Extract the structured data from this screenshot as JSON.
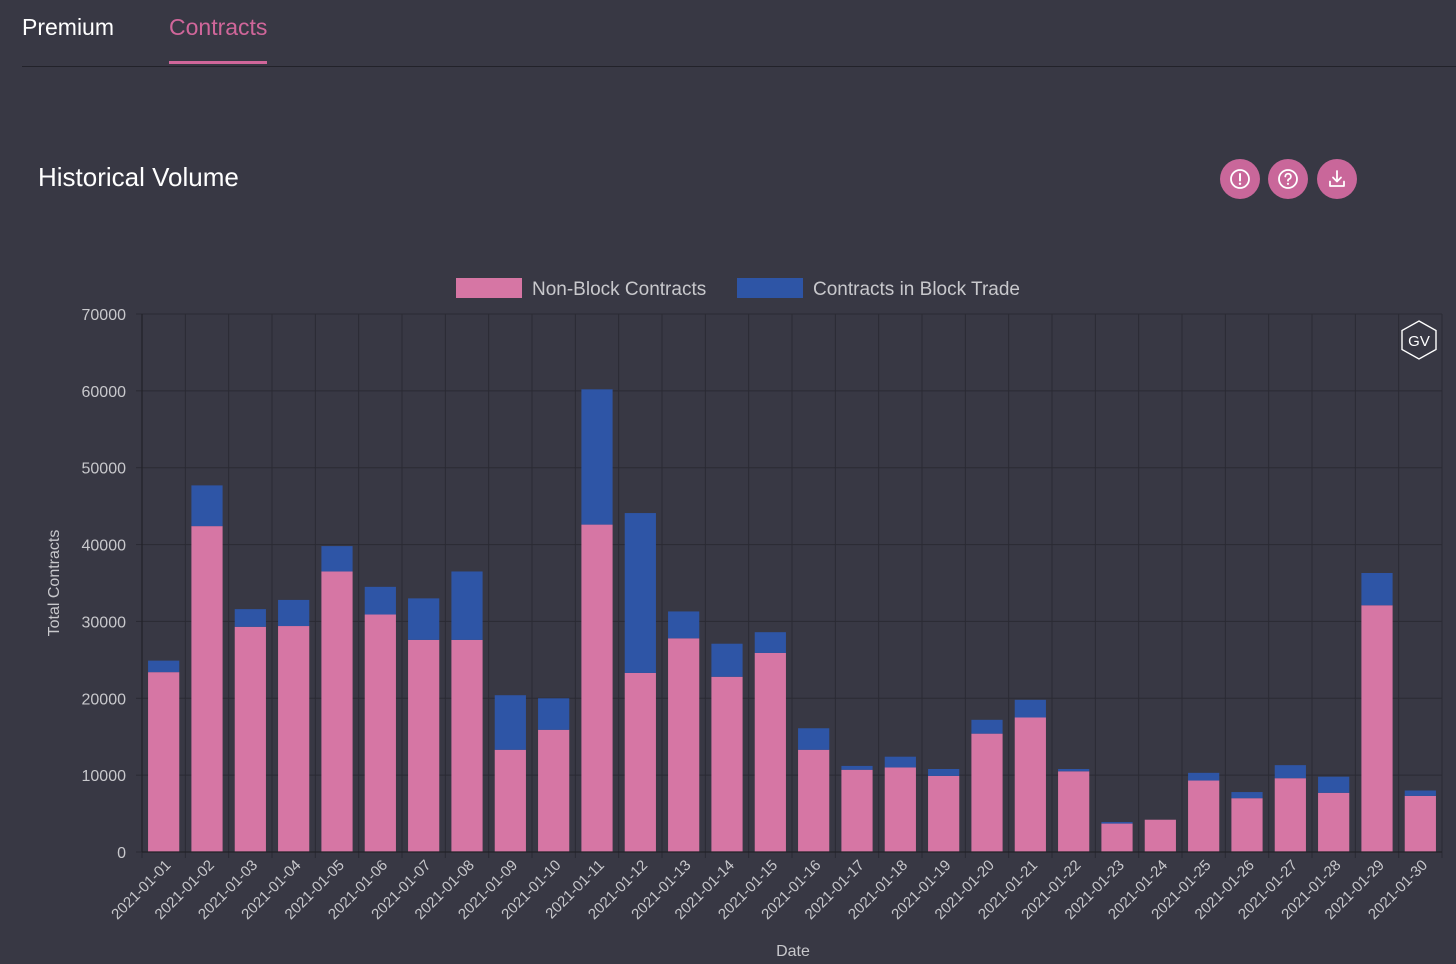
{
  "tabs": [
    {
      "label": "Premium",
      "active": false
    },
    {
      "label": "Contracts",
      "active": true
    }
  ],
  "section": {
    "title": "Historical Volume",
    "actions": [
      {
        "icon": "alert-icon"
      },
      {
        "icon": "help-icon"
      },
      {
        "icon": "download-icon"
      }
    ]
  },
  "watermark": "GV",
  "colors": {
    "background": "#383844",
    "accent": "#d0669a",
    "non_block": "#d676a4",
    "block": "#2e55a6",
    "grid": "#2a2a33",
    "axis_text": "#c8c8cc"
  },
  "chart_data": {
    "type": "bar",
    "stacked": true,
    "xlabel": "Date",
    "ylabel": "Total Contracts",
    "ylim": [
      0,
      70000
    ],
    "yticks": [
      0,
      10000,
      20000,
      30000,
      40000,
      50000,
      60000,
      70000
    ],
    "grid": true,
    "legend_position": "top-center",
    "categories": [
      "2021-01-01",
      "2021-01-02",
      "2021-01-03",
      "2021-01-04",
      "2021-01-05",
      "2021-01-06",
      "2021-01-07",
      "2021-01-08",
      "2021-01-09",
      "2021-01-10",
      "2021-01-11",
      "2021-01-12",
      "2021-01-13",
      "2021-01-14",
      "2021-01-15",
      "2021-01-16",
      "2021-01-17",
      "2021-01-18",
      "2021-01-19",
      "2021-01-20",
      "2021-01-21",
      "2021-01-22",
      "2021-01-23",
      "2021-01-24",
      "2021-01-25",
      "2021-01-26",
      "2021-01-27",
      "2021-01-28",
      "2021-01-29",
      "2021-01-30"
    ],
    "series": [
      {
        "name": "Non-Block Contracts",
        "values": [
          23400,
          42400,
          29300,
          29400,
          36500,
          30900,
          27600,
          27600,
          13300,
          15900,
          42600,
          23300,
          27800,
          22800,
          25900,
          13300,
          10700,
          11000,
          9900,
          15400,
          17500,
          10500,
          3700,
          4200,
          9300,
          7000,
          9600,
          7700,
          32100,
          7300
        ]
      },
      {
        "name": "Contracts in Block Trade",
        "values": [
          1500,
          5300,
          2300,
          3400,
          3300,
          3600,
          5400,
          8900,
          7100,
          4100,
          17600,
          20800,
          3500,
          4300,
          2700,
          2800,
          500,
          1400,
          900,
          1800,
          2300,
          300,
          200,
          0,
          1000,
          800,
          1700,
          2100,
          4200,
          700
        ]
      }
    ]
  }
}
